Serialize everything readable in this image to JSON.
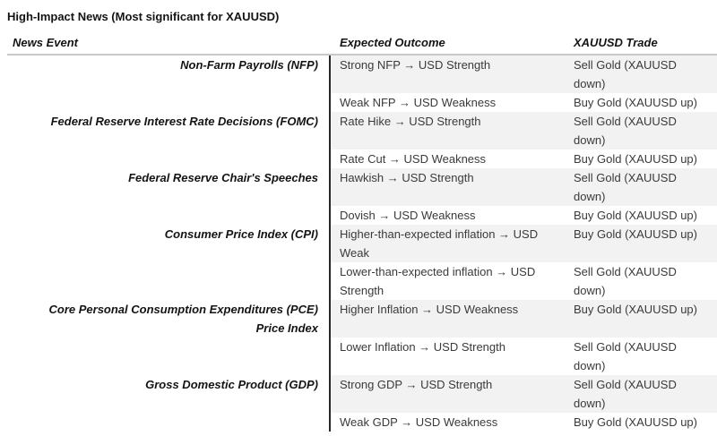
{
  "title": "High-Impact News (Most significant for XAUUSD)",
  "colors": {
    "row_shading": "#f2f2f2",
    "column_divider": "#262626",
    "header_underline": "#c9c9c9",
    "body_text": "#3a3a3a",
    "heading_text": "#141414"
  },
  "table": {
    "columns": [
      "News Event",
      "Expected Outcome",
      "XAUUSD Trade"
    ],
    "rows": [
      {
        "event": "Non-Farm Payrolls (NFP)",
        "outcome": "Strong NFP → USD Strength",
        "trade": "Sell Gold (XAUUSD\ndown)"
      },
      {
        "event": "",
        "outcome": "Weak NFP → USD Weakness",
        "trade": "Buy Gold (XAUUSD up)"
      },
      {
        "event": "Federal Reserve Interest Rate Decisions (FOMC)",
        "outcome": "Rate Hike → USD Strength",
        "trade": "Sell Gold (XAUUSD\ndown)"
      },
      {
        "event": "",
        "outcome": "Rate Cut → USD Weakness",
        "trade": "Buy Gold (XAUUSD up)"
      },
      {
        "event": "Federal Reserve Chair's Speeches",
        "outcome": "Hawkish → USD Strength",
        "trade": "Sell Gold (XAUUSD\ndown)"
      },
      {
        "event": "",
        "outcome": "Dovish → USD Weakness",
        "trade": "Buy Gold (XAUUSD up)"
      },
      {
        "event": "Consumer Price Index (CPI)",
        "outcome": "Higher-than-expected inflation → USD\nWeak",
        "trade": "Buy Gold (XAUUSD up)"
      },
      {
        "event": "",
        "outcome": "Lower-than-expected inflation → USD\nStrength",
        "trade": "Sell Gold (XAUUSD\ndown)"
      },
      {
        "event": "Core Personal Consumption Expenditures (PCE)\nPrice Index",
        "outcome": "Higher Inflation → USD Weakness",
        "trade": "Buy Gold (XAUUSD up)"
      },
      {
        "event": "",
        "outcome": "Lower Inflation → USD Strength",
        "trade": "Sell Gold (XAUUSD\ndown)"
      },
      {
        "event": "Gross Domestic Product (GDP)",
        "outcome": "Strong GDP → USD Strength",
        "trade": "Sell Gold (XAUUSD\ndown)"
      },
      {
        "event": "",
        "outcome": "Weak GDP → USD Weakness",
        "trade": "Buy Gold (XAUUSD up)"
      }
    ]
  }
}
